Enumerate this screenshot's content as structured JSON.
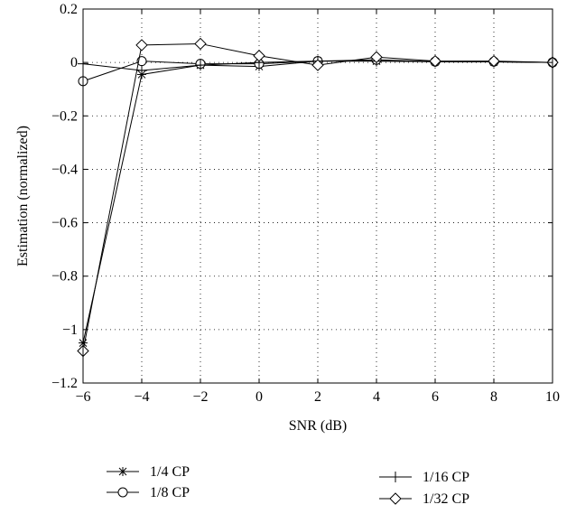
{
  "chart_data": {
    "type": "line",
    "title": "",
    "xlabel": "SNR (dB)",
    "ylabel": "Estimation (normalized)",
    "xlim": [
      -6,
      10
    ],
    "ylim": [
      -1.2,
      0.2
    ],
    "xticks": [
      -6,
      -4,
      -2,
      0,
      2,
      4,
      6,
      8,
      10
    ],
    "yticks": [
      0.2,
      0,
      -0.2,
      -0.4,
      -0.6,
      -0.8,
      -1,
      -1.2
    ],
    "xtick_labels": [
      "−6",
      "−4",
      "−2",
      "0",
      "2",
      "4",
      "6",
      "8",
      "10"
    ],
    "ytick_labels": [
      "0.2",
      "0",
      "−0.2",
      "−0.4",
      "−0.6",
      "−0.8",
      "−1",
      "−1.2"
    ],
    "grid": true,
    "legend_placement": "bottom, two columns",
    "series": [
      {
        "name": "1/4 CP",
        "marker": "asterisk",
        "x": [
          -6,
          -4,
          -2,
          0,
          2,
          4,
          6,
          8,
          10
        ],
        "y": [
          -1.05,
          -0.045,
          -0.01,
          -0.015,
          0.005,
          0.005,
          0.003,
          0.002,
          0.0
        ]
      },
      {
        "name": "1/8 CP",
        "marker": "circle",
        "x": [
          -6,
          -4,
          -2,
          0,
          2,
          4,
          6,
          8,
          10
        ],
        "y": [
          -0.07,
          0.005,
          -0.005,
          -0.005,
          0.005,
          0.01,
          0.003,
          0.003,
          0.0
        ]
      },
      {
        "name": "1/16 CP",
        "marker": "plus",
        "x": [
          -6,
          -4,
          -2,
          0,
          2,
          4,
          6,
          8,
          10
        ],
        "y": [
          -0.005,
          -0.03,
          -0.01,
          0.0,
          0.005,
          0.005,
          0.003,
          0.002,
          0.0
        ]
      },
      {
        "name": "1/32 CP",
        "marker": "diamond",
        "x": [
          -6,
          -4,
          -2,
          0,
          2,
          4,
          6,
          8,
          10
        ],
        "y": [
          -1.08,
          0.065,
          0.07,
          0.025,
          -0.01,
          0.02,
          0.005,
          0.005,
          0.0
        ]
      }
    ]
  }
}
